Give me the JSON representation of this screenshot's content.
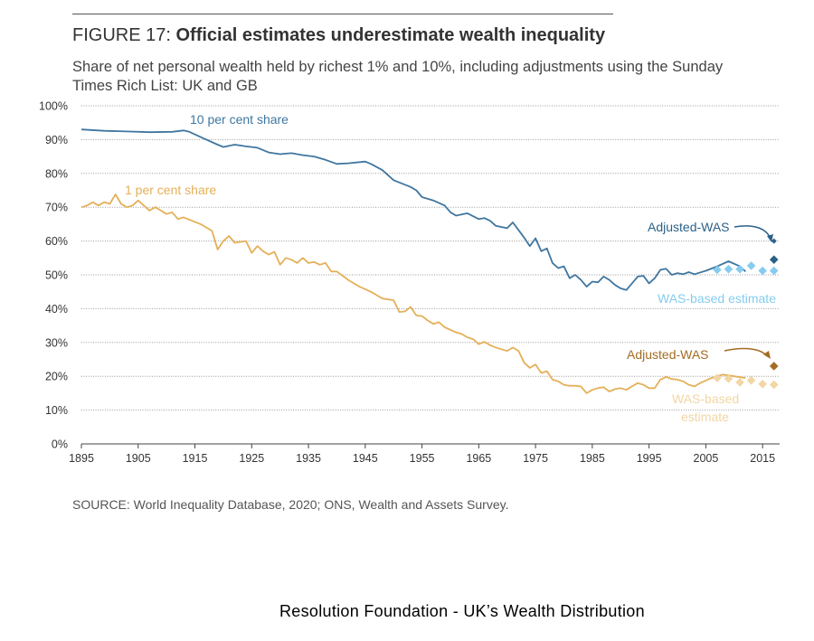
{
  "figure": {
    "label": "FIGURE 17:",
    "title": "Official estimates underestimate wealth inequality",
    "subtitle": "Share of net personal wealth held by richest 1% and 10%, including adjustments using the Sunday Times Rich List: UK and GB",
    "source": "SOURCE: World Inequality Database, 2020; ONS, Wealth and Assets Survey."
  },
  "caption": "Resolution Foundation - UK’s Wealth Distribution",
  "colors": {
    "top10": "#3f76a0",
    "top1": "#e4b058",
    "was10": "#86ccee",
    "was1": "#f2d6a4",
    "adj10": "#2c6188",
    "adj1": "#a46c22",
    "grid": "#999999"
  },
  "chart_data": {
    "type": "line",
    "xlim": [
      1895,
      2018
    ],
    "ylim": [
      0,
      100
    ],
    "x_ticks": [
      1895,
      1905,
      1915,
      1925,
      1935,
      1945,
      1955,
      1965,
      1975,
      1985,
      1995,
      2005,
      2015
    ],
    "y_ticks": [
      0,
      10,
      20,
      30,
      40,
      50,
      60,
      70,
      80,
      90,
      100
    ],
    "y_tick_labels": [
      "0%",
      "10%",
      "20%",
      "30%",
      "40%",
      "50%",
      "60%",
      "70%",
      "80%",
      "90%",
      "100%"
    ],
    "series": [
      {
        "name": "10 per cent share",
        "key": "top10",
        "points": [
          [
            1895,
            93
          ],
          [
            1899,
            92.6
          ],
          [
            1903,
            92.4
          ],
          [
            1907,
            92.2
          ],
          [
            1911,
            92.3
          ],
          [
            1913,
            92.7
          ],
          [
            1914,
            92.3
          ],
          [
            1917,
            90
          ],
          [
            1919,
            88.5
          ],
          [
            1920,
            87.8
          ],
          [
            1922,
            88.5
          ],
          [
            1924,
            88
          ],
          [
            1926,
            87.6
          ],
          [
            1928,
            86.2
          ],
          [
            1930,
            85.7
          ],
          [
            1932,
            86
          ],
          [
            1934,
            85.4
          ],
          [
            1936,
            85
          ],
          [
            1938,
            84
          ],
          [
            1940,
            82.8
          ],
          [
            1942,
            83
          ],
          [
            1945,
            83.5
          ],
          [
            1946,
            82.8
          ],
          [
            1948,
            81
          ],
          [
            1950,
            78
          ],
          [
            1953,
            76
          ],
          [
            1954,
            75
          ],
          [
            1955,
            73
          ],
          [
            1957,
            72
          ],
          [
            1959,
            70.5
          ],
          [
            1960,
            68.5
          ],
          [
            1961,
            67.5
          ],
          [
            1963,
            68.2
          ],
          [
            1965,
            66.5
          ],
          [
            1966,
            66.8
          ],
          [
            1967,
            66
          ],
          [
            1968,
            64.5
          ],
          [
            1970,
            63.8
          ],
          [
            1971,
            65.5
          ],
          [
            1973,
            61
          ],
          [
            1974,
            58.5
          ],
          [
            1975,
            60.8
          ],
          [
            1976,
            57
          ],
          [
            1977,
            57.8
          ],
          [
            1978,
            53.5
          ],
          [
            1979,
            52
          ],
          [
            1980,
            52.5
          ],
          [
            1981,
            49
          ],
          [
            1982,
            50
          ],
          [
            1983,
            48.5
          ],
          [
            1984,
            46.5
          ],
          [
            1985,
            48
          ],
          [
            1986,
            47.8
          ],
          [
            1987,
            49.5
          ],
          [
            1988,
            48.5
          ],
          [
            1989,
            47
          ],
          [
            1990,
            46
          ],
          [
            1991,
            45.5
          ],
          [
            1992,
            47.5
          ],
          [
            1993,
            49.5
          ],
          [
            1994,
            49.7
          ],
          [
            1995,
            47.5
          ],
          [
            1996,
            49
          ],
          [
            1997,
            51.5
          ],
          [
            1998,
            51.8
          ],
          [
            1999,
            50
          ],
          [
            2000,
            50.5
          ],
          [
            2001,
            50.2
          ],
          [
            2002,
            50.8
          ],
          [
            2003,
            50.2
          ],
          [
            2005,
            51.2
          ],
          [
            2007,
            52.5
          ],
          [
            2009,
            54
          ],
          [
            2011,
            52.5
          ],
          [
            2012,
            51
          ]
        ]
      },
      {
        "name": "1 per cent share",
        "key": "top1",
        "points": [
          [
            1895,
            70
          ],
          [
            1896,
            70.5
          ],
          [
            1897,
            71.5
          ],
          [
            1898,
            70.5
          ],
          [
            1899,
            71.5
          ],
          [
            1900,
            71
          ],
          [
            1901,
            73.8
          ],
          [
            1902,
            71
          ],
          [
            1903,
            70
          ],
          [
            1904,
            70.5
          ],
          [
            1905,
            72
          ],
          [
            1906,
            70.5
          ],
          [
            1907,
            69
          ],
          [
            1908,
            70
          ],
          [
            1909,
            69
          ],
          [
            1910,
            68
          ],
          [
            1911,
            68.5
          ],
          [
            1912,
            66.5
          ],
          [
            1913,
            67
          ],
          [
            1916,
            65
          ],
          [
            1918,
            63
          ],
          [
            1919,
            57.5
          ],
          [
            1920,
            60
          ],
          [
            1921,
            61.5
          ],
          [
            1922,
            59.5
          ],
          [
            1924,
            60
          ],
          [
            1925,
            56.5
          ],
          [
            1926,
            58.5
          ],
          [
            1927,
            57
          ],
          [
            1928,
            56
          ],
          [
            1929,
            56.8
          ],
          [
            1930,
            53
          ],
          [
            1931,
            55
          ],
          [
            1932,
            54.5
          ],
          [
            1933,
            53.5
          ],
          [
            1934,
            55
          ],
          [
            1935,
            53.5
          ],
          [
            1936,
            53.8
          ],
          [
            1937,
            53
          ],
          [
            1938,
            53.5
          ],
          [
            1939,
            51
          ],
          [
            1940,
            51
          ],
          [
            1942,
            48.5
          ],
          [
            1944,
            46.5
          ],
          [
            1946,
            45
          ],
          [
            1947,
            44
          ],
          [
            1948,
            43
          ],
          [
            1950,
            42.5
          ],
          [
            1951,
            39
          ],
          [
            1952,
            39.2
          ],
          [
            1953,
            40.5
          ],
          [
            1954,
            38
          ],
          [
            1955,
            37.8
          ],
          [
            1956,
            36.5
          ],
          [
            1957,
            35.5
          ],
          [
            1958,
            36
          ],
          [
            1959,
            34.5
          ],
          [
            1961,
            33
          ],
          [
            1962,
            32.5
          ],
          [
            1963,
            31.5
          ],
          [
            1964,
            31
          ],
          [
            1965,
            29.5
          ],
          [
            1966,
            30.2
          ],
          [
            1967,
            29.2
          ],
          [
            1968,
            28.5
          ],
          [
            1969,
            28
          ],
          [
            1970,
            27.5
          ],
          [
            1971,
            28.5
          ],
          [
            1972,
            27.5
          ],
          [
            1973,
            24
          ],
          [
            1974,
            22.5
          ],
          [
            1975,
            23.5
          ],
          [
            1976,
            21
          ],
          [
            1977,
            21.5
          ],
          [
            1978,
            19
          ],
          [
            1979,
            18.5
          ],
          [
            1980,
            17.5
          ],
          [
            1981,
            17.2
          ],
          [
            1982,
            17.2
          ],
          [
            1983,
            17
          ],
          [
            1984,
            15
          ],
          [
            1985,
            16
          ],
          [
            1986,
            16.5
          ],
          [
            1987,
            16.8
          ],
          [
            1988,
            15.5
          ],
          [
            1989,
            16.2
          ],
          [
            1990,
            16.5
          ],
          [
            1991,
            16
          ],
          [
            1992,
            17
          ],
          [
            1993,
            18
          ],
          [
            1994,
            17.5
          ],
          [
            1995,
            16.5
          ],
          [
            1996,
            16.5
          ],
          [
            1997,
            19
          ],
          [
            1998,
            19.8
          ],
          [
            1999,
            19.2
          ],
          [
            2000,
            19
          ],
          [
            2001,
            18.5
          ],
          [
            2002,
            17.5
          ],
          [
            2003,
            17
          ],
          [
            2004,
            18
          ],
          [
            2006,
            19.5
          ],
          [
            2008,
            20.5
          ],
          [
            2010,
            20
          ],
          [
            2012,
            19.5
          ]
        ]
      },
      {
        "name": "WAS-based estimate",
        "key": "was10",
        "marker": "diamond",
        "points": [
          [
            2007,
            51.5
          ],
          [
            2009,
            51.7
          ],
          [
            2011,
            51.7
          ],
          [
            2013,
            52.7
          ],
          [
            2015,
            51.2
          ],
          [
            2017,
            51.2
          ]
        ]
      },
      {
        "name": "WAS-based estimate",
        "key": "was1",
        "marker": "diamond",
        "points": [
          [
            2007,
            19.5
          ],
          [
            2009,
            19.3
          ],
          [
            2011,
            18.2
          ],
          [
            2013,
            18.8
          ],
          [
            2015,
            17.7
          ],
          [
            2017,
            17.5
          ]
        ]
      },
      {
        "name": "Adjusted-WAS",
        "key": "adj10",
        "marker": "diamond",
        "points": [
          [
            2017,
            54.5
          ],
          [
            2017,
            60
          ]
        ]
      },
      {
        "name": "Adjusted-WAS",
        "key": "adj1",
        "marker": "diamond",
        "points": [
          [
            2017,
            23
          ]
        ]
      }
    ],
    "annotations": {
      "top10_label": "10 per cent share",
      "top1_label": "1 per cent share",
      "adj10_label": "Adjusted-WAS",
      "was10_label": "WAS-based estimate",
      "adj1_label": "Adjusted-WAS",
      "was1_label_line1": "WAS-based",
      "was1_label_line2": "estimate"
    }
  }
}
